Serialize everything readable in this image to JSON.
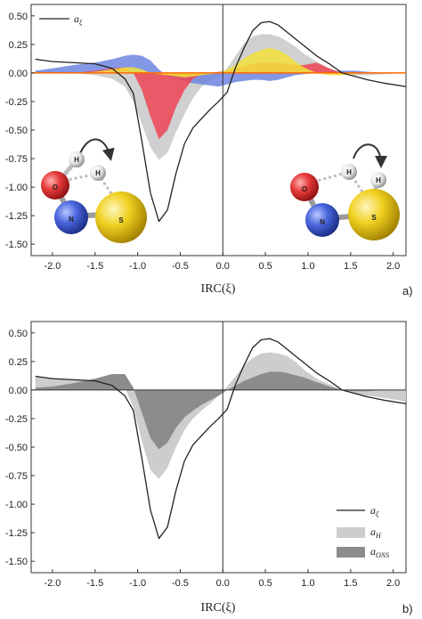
{
  "chart_data": [
    {
      "panel_label": "a)",
      "type": "line",
      "xlabel": "IRC(ξ)",
      "ylabel": "",
      "xlim": [
        -2.25,
        2.15
      ],
      "ylim": [
        -1.6,
        0.6
      ],
      "x_ticks": [
        -2.0,
        -1.5,
        -1.0,
        -0.5,
        0.0,
        0.5,
        1.0,
        1.5,
        2.0
      ],
      "x_tick_labels": [
        "-2.0",
        "-1.5",
        "-1.0",
        "-0.5",
        "0.0",
        "0.5",
        "1.0",
        "1.5",
        "2.0"
      ],
      "y_ticks": [
        0.5,
        0.25,
        0.0,
        -0.25,
        -0.5,
        -0.75,
        -1.0,
        -1.25,
        -1.5
      ],
      "y_tick_labels": [
        "0.50",
        "0.25",
        "0.00",
        "-0.25",
        "-0.50",
        "-0.75",
        "-1.00",
        "-1.25",
        "-1.50"
      ],
      "legend": [
        {
          "text": "a",
          "sub": "ξ"
        }
      ],
      "legend_position": "top-left",
      "x": [
        -2.2,
        -2.0,
        -1.75,
        -1.5,
        -1.3,
        -1.15,
        -1.05,
        -0.95,
        -0.85,
        -0.75,
        -0.65,
        -0.55,
        -0.45,
        -0.35,
        -0.25,
        -0.15,
        -0.05,
        0.05,
        0.15,
        0.25,
        0.35,
        0.45,
        0.55,
        0.65,
        0.75,
        0.85,
        0.95,
        1.1,
        1.25,
        1.4,
        1.55,
        1.7,
        1.9,
        2.15
      ],
      "series": [
        {
          "name": "gray-band",
          "style": "fill",
          "color": "#c8c8c8",
          "values": [
            0.02,
            0.01,
            0.0,
            -0.02,
            -0.05,
            -0.12,
            -0.25,
            -0.45,
            -0.65,
            -0.76,
            -0.7,
            -0.52,
            -0.36,
            -0.22,
            -0.12,
            -0.07,
            -0.03,
            0.04,
            0.15,
            0.26,
            0.32,
            0.34,
            0.34,
            0.32,
            0.28,
            0.23,
            0.17,
            0.1,
            0.04,
            0.0,
            -0.02,
            -0.02,
            -0.01,
            0.0
          ]
        },
        {
          "name": "blue-band",
          "style": "fill",
          "color": "#6f85e0",
          "values": [
            0.02,
            0.04,
            0.07,
            0.09,
            0.12,
            0.15,
            0.16,
            0.15,
            0.11,
            0.03,
            -0.03,
            -0.05,
            -0.07,
            -0.09,
            -0.1,
            -0.11,
            -0.12,
            -0.1,
            -0.08,
            -0.07,
            -0.06,
            -0.06,
            -0.07,
            -0.06,
            -0.04,
            -0.02,
            -0.01,
            0.0,
            0.01,
            0.02,
            0.02,
            0.01,
            0.0,
            0.0
          ]
        },
        {
          "name": "red-band",
          "style": "fill",
          "color": "#ee4455",
          "values": [
            0.0,
            0.0,
            0.0,
            0.02,
            0.04,
            0.05,
            0.0,
            -0.15,
            -0.38,
            -0.58,
            -0.5,
            -0.3,
            -0.15,
            -0.05,
            -0.01,
            0.0,
            0.01,
            0.02,
            0.04,
            0.06,
            0.08,
            0.09,
            0.09,
            0.09,
            0.08,
            0.07,
            0.07,
            0.09,
            0.04,
            0.0,
            -0.01,
            0.0,
            0.0,
            0.0
          ]
        },
        {
          "name": "yellow-band",
          "style": "fill",
          "color": "#f2e23a",
          "values": [
            0.0,
            0.0,
            0.0,
            0.01,
            0.03,
            0.05,
            0.05,
            0.03,
            0.0,
            -0.01,
            -0.02,
            -0.03,
            -0.04,
            -0.03,
            -0.02,
            -0.01,
            0.0,
            0.03,
            0.07,
            0.13,
            0.17,
            0.2,
            0.22,
            0.2,
            0.16,
            0.1,
            0.05,
            0.0,
            -0.02,
            -0.02,
            -0.01,
            0.0,
            0.0,
            0.0
          ]
        },
        {
          "name": "a_ξ",
          "style": "line",
          "color": "#222222",
          "values": [
            0.12,
            0.1,
            0.09,
            0.08,
            0.04,
            -0.05,
            -0.18,
            -0.6,
            -1.05,
            -1.3,
            -1.2,
            -0.88,
            -0.62,
            -0.48,
            -0.4,
            -0.32,
            -0.25,
            -0.17,
            0.05,
            0.22,
            0.37,
            0.44,
            0.45,
            0.42,
            0.36,
            0.3,
            0.24,
            0.15,
            0.08,
            0.0,
            -0.03,
            -0.06,
            -0.09,
            -0.12
          ]
        }
      ]
    },
    {
      "panel_label": "b)",
      "type": "line",
      "xlabel": "IRC(ξ)",
      "ylabel": "",
      "xlim": [
        -2.25,
        2.15
      ],
      "ylim": [
        -1.6,
        0.6
      ],
      "x_ticks": [
        -2.0,
        -1.5,
        -1.0,
        -0.5,
        0.0,
        0.5,
        1.0,
        1.5,
        2.0
      ],
      "x_tick_labels": [
        "-2.0",
        "-1.5",
        "-1.0",
        "-0.5",
        "0.0",
        "0.5",
        "1.0",
        "1.5",
        "2.0"
      ],
      "y_ticks": [
        0.5,
        0.25,
        0.0,
        -0.25,
        -0.5,
        -0.75,
        -1.0,
        -1.25,
        -1.5
      ],
      "y_tick_labels": [
        "0.50",
        "0.25",
        "0.00",
        "-0.25",
        "-0.50",
        "-0.75",
        "-1.00",
        "-1.25",
        "-1.50"
      ],
      "legend": [
        {
          "text": "a",
          "sub": "ξ",
          "style": "line"
        },
        {
          "text": "a",
          "sub": "H",
          "style": "light"
        },
        {
          "text": "a",
          "sub": "ONS",
          "style": "dark"
        }
      ],
      "legend_position": "bottom-right",
      "x": [
        -2.2,
        -2.0,
        -1.75,
        -1.5,
        -1.3,
        -1.15,
        -1.05,
        -0.95,
        -0.85,
        -0.75,
        -0.65,
        -0.55,
        -0.45,
        -0.35,
        -0.25,
        -0.15,
        -0.05,
        0.05,
        0.15,
        0.25,
        0.35,
        0.45,
        0.55,
        0.65,
        0.75,
        0.85,
        0.95,
        1.1,
        1.25,
        1.4,
        1.55,
        1.7,
        1.9,
        2.15
      ],
      "series": [
        {
          "name": "a_H",
          "style": "fill",
          "color": "#cdcdcd",
          "values": [
            0.12,
            0.1,
            0.09,
            0.07,
            0.06,
            0.02,
            -0.15,
            -0.45,
            -0.7,
            -0.78,
            -0.68,
            -0.5,
            -0.35,
            -0.25,
            -0.18,
            -0.12,
            -0.05,
            0.03,
            0.12,
            0.22,
            0.28,
            0.32,
            0.33,
            0.32,
            0.3,
            0.25,
            0.18,
            0.1,
            0.05,
            0.0,
            -0.03,
            -0.05,
            -0.07,
            -0.1
          ]
        },
        {
          "name": "a_ONS",
          "style": "fill",
          "color": "#8c8c8c",
          "values": [
            0.02,
            0.03,
            0.06,
            0.1,
            0.14,
            0.14,
            0.02,
            -0.2,
            -0.42,
            -0.52,
            -0.46,
            -0.33,
            -0.24,
            -0.18,
            -0.13,
            -0.09,
            -0.05,
            0.0,
            0.04,
            0.08,
            0.11,
            0.14,
            0.16,
            0.16,
            0.15,
            0.13,
            0.11,
            0.07,
            0.03,
            0.0,
            -0.01,
            -0.01,
            0.0,
            0.0
          ]
        },
        {
          "name": "a_ξ",
          "style": "line",
          "color": "#222222",
          "values": [
            0.12,
            0.1,
            0.09,
            0.08,
            0.04,
            -0.05,
            -0.18,
            -0.6,
            -1.05,
            -1.3,
            -1.2,
            -0.88,
            -0.62,
            -0.48,
            -0.4,
            -0.32,
            -0.25,
            -0.17,
            0.05,
            0.22,
            0.37,
            0.44,
            0.45,
            0.42,
            0.36,
            0.3,
            0.24,
            0.15,
            0.08,
            0.0,
            -0.03,
            -0.06,
            -0.09,
            -0.12
          ]
        }
      ]
    }
  ],
  "molecules": [
    {
      "position": "left",
      "atoms": {
        "o": "O",
        "n": "N",
        "s": "S",
        "h1": "H",
        "h2": "H"
      }
    },
    {
      "position": "right",
      "atoms": {
        "o": "O",
        "n": "N",
        "s": "S",
        "h1": "H",
        "h2": "H"
      }
    }
  ]
}
